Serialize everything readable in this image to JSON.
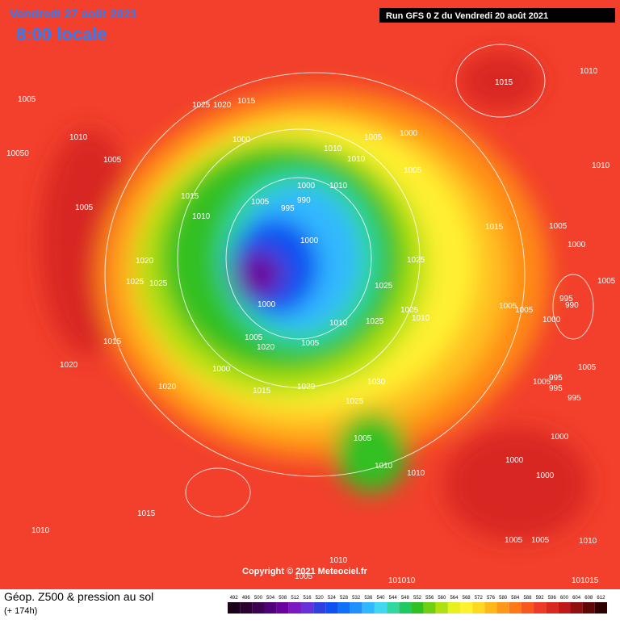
{
  "header": {
    "date": "Vendredi 27 août 2021",
    "time": "8:00 locale",
    "run": "Run GFS 0 Z du Vendredi 20 août 2021"
  },
  "isobar_labels": [
    "1005",
    "1010",
    "10050",
    "1005",
    "1005",
    "1025",
    "1020",
    "1015",
    "1000",
    "1015",
    "1010",
    "1005",
    "1020",
    "1025",
    "1025",
    "1015",
    "1020",
    "1020",
    "1000",
    "1005",
    "1020",
    "1015",
    "1020",
    "1000",
    "1000",
    "995",
    "990",
    "1000",
    "1010",
    "1010",
    "1010",
    "1005",
    "1000",
    "1005",
    "1015",
    "1010",
    "1010",
    "1015",
    "1025",
    "1025",
    "1005",
    "1010",
    "1025",
    "1010",
    "1005",
    "1030",
    "1025",
    "1005",
    "1010",
    "1010",
    "1005",
    "1000",
    "1005",
    "995",
    "990",
    "1005",
    "1005",
    "1000",
    "1005",
    "995",
    "1005",
    "995",
    "995",
    "1000",
    "1000",
    "1000",
    "1015",
    "1010",
    "1005",
    "1005",
    "1010",
    "1010",
    "1005",
    "101010",
    "101015"
  ],
  "copyright": "Copyright © 2021 Meteociel.fr",
  "legend": {
    "title": "Géop. Z500 & pression au sol",
    "lead": "(+ 174h)",
    "scale": [
      492,
      496,
      500,
      504,
      508,
      512,
      516,
      520,
      524,
      528,
      532,
      536,
      540,
      544,
      548,
      552,
      556,
      560,
      564,
      568,
      572,
      576,
      580,
      584,
      588,
      592,
      596,
      600,
      604,
      608,
      612
    ],
    "colors": [
      "#1a0018",
      "#2c0030",
      "#3e0050",
      "#52007a",
      "#6a009e",
      "#7c18c0",
      "#6a30d8",
      "#3040e0",
      "#1050f0",
      "#1070f8",
      "#2090ff",
      "#30b8ff",
      "#40d8f0",
      "#30d8a0",
      "#20c860",
      "#30c020",
      "#70d010",
      "#b0e010",
      "#e8f020",
      "#fff030",
      "#ffd820",
      "#ffb818",
      "#ff9818",
      "#ff7818",
      "#f85820",
      "#f03a28",
      "#d82820",
      "#c01818",
      "#901010",
      "#600808",
      "#300000"
    ]
  }
}
